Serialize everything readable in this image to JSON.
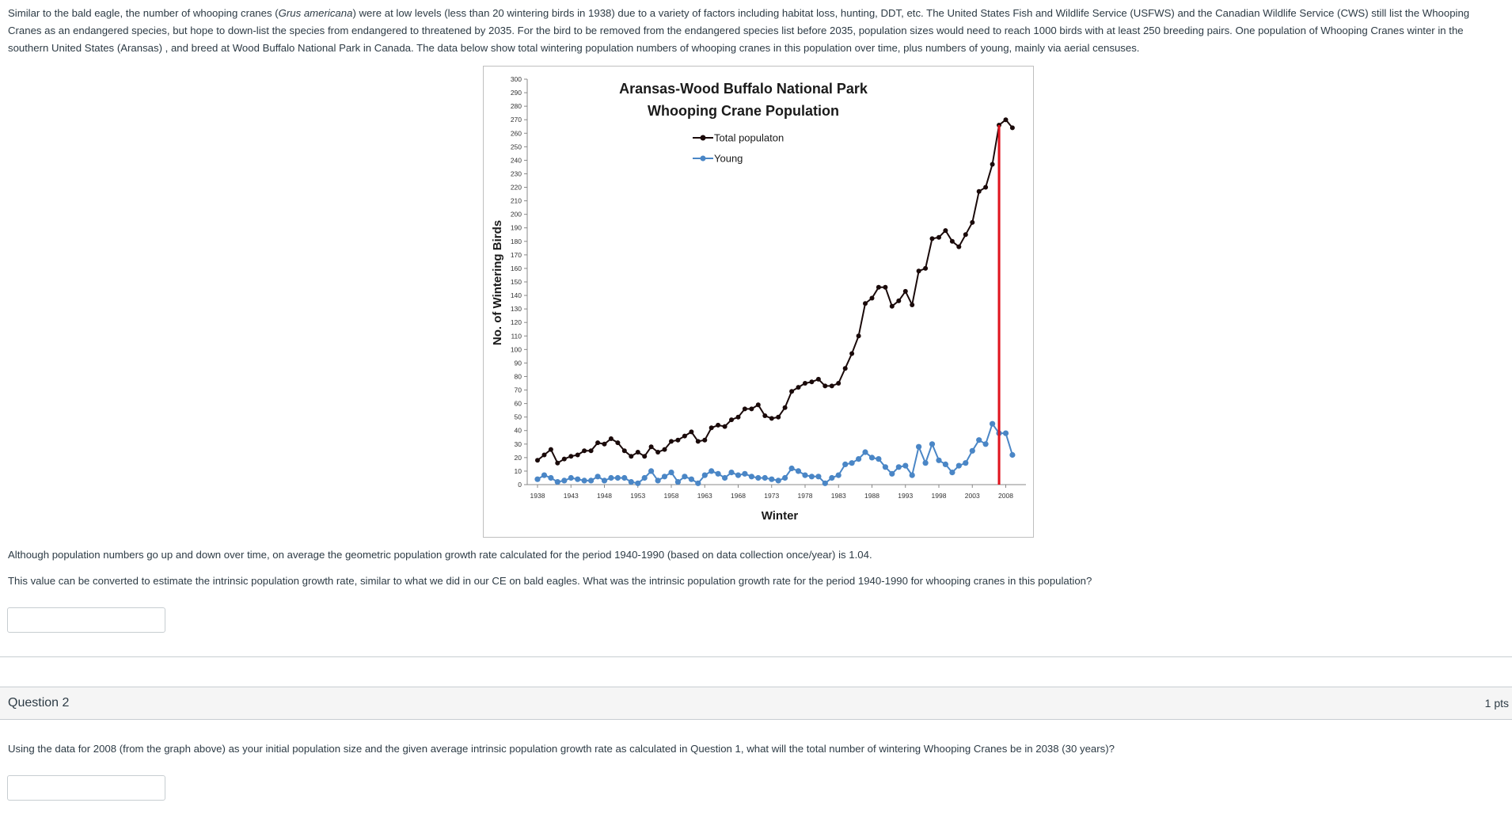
{
  "intro": {
    "text_before_italic": "Similar to the bald eagle, the number of whooping cranes (",
    "italic_species": "Grus americana",
    "text_after_italic": ") were at low levels (less than 20 wintering birds in 1938) due to a variety of factors including habitat loss, hunting, DDT, etc. The United States Fish and Wildlife Service (USFWS) and the Canadian Wildlife Service (CWS) still list the Whooping Cranes as an endangered species, but hope to down-list the species from endangered to threatened by 2035. For the bird to be removed from the endangered species list before 2035, population sizes would need to reach 1000 birds with at least 250 breeding pairs. One population of Whooping Cranes winter in the southern United States (Aransas) , and breed at Wood Buffalo National Park in Canada. The data below show total wintering population numbers of whooping cranes in this population over time, plus numbers of young, mainly via aerial censuses."
  },
  "question1": {
    "paragraph1": "Although population numbers go up and down over time, on average the geometric population growth rate calculated for the period 1940-1990 (based on data collection once/year) is 1.04.",
    "paragraph2": "This value can be converted to estimate the intrinsic population growth rate, similar to what we did in our CE on bald eagles. What was the intrinsic population growth rate for the period 1940-1990 for whooping cranes in this population?",
    "answer_value": ""
  },
  "question2": {
    "title": "Question 2",
    "points": "1 pts",
    "text": "Using the data for 2008 (from the graph above) as your initial population size and the given average intrinsic population growth rate as calculated in Question 1, what will the total number of wintering Whooping Cranes be in 2038 (30 years)?",
    "answer_value": ""
  },
  "chart_data": {
    "type": "line",
    "title_line1": "Aransas-Wood Buffalo National Park",
    "title_line2": "Whooping Crane Population",
    "xlabel": "Winter",
    "ylabel": "No. of Wintering Birds",
    "ylim": [
      0,
      300
    ],
    "yticks": [
      0,
      10,
      20,
      30,
      40,
      50,
      60,
      70,
      80,
      90,
      100,
      110,
      120,
      130,
      140,
      150,
      160,
      170,
      180,
      190,
      200,
      210,
      220,
      230,
      240,
      250,
      260,
      270,
      280,
      290,
      300
    ],
    "xticks": [
      "1938",
      "1943",
      "1948",
      "1953",
      "1958",
      "1963",
      "1968",
      "1973",
      "1978",
      "1983",
      "1988",
      "1993",
      "1998",
      "2003",
      "2008"
    ],
    "xlim": [
      1938,
      2009
    ],
    "legend_position": "top-center",
    "grid": false,
    "marker_line": {
      "x": 2007,
      "color": "#e0141e"
    },
    "years": [
      1938,
      1939,
      1940,
      1941,
      1942,
      1943,
      1944,
      1945,
      1946,
      1947,
      1948,
      1949,
      1950,
      1951,
      1952,
      1953,
      1954,
      1955,
      1956,
      1957,
      1958,
      1959,
      1960,
      1961,
      1962,
      1963,
      1964,
      1965,
      1966,
      1967,
      1968,
      1969,
      1970,
      1971,
      1972,
      1973,
      1974,
      1975,
      1976,
      1977,
      1978,
      1979,
      1980,
      1981,
      1982,
      1983,
      1984,
      1985,
      1986,
      1987,
      1988,
      1989,
      1990,
      1991,
      1992,
      1993,
      1994,
      1995,
      1996,
      1997,
      1998,
      1999,
      2000,
      2001,
      2002,
      2003,
      2004,
      2005,
      2006,
      2007,
      2008,
      2009
    ],
    "series": [
      {
        "name": "Total populaton",
        "color": "#1a0a0a",
        "values": [
          18,
          22,
          26,
          16,
          19,
          21,
          22,
          25,
          25,
          31,
          30,
          34,
          31,
          25,
          21,
          24,
          21,
          28,
          24,
          26,
          32,
          33,
          36,
          39,
          32,
          33,
          42,
          44,
          43,
          48,
          50,
          56,
          56,
          59,
          51,
          49,
          50,
          57,
          69,
          72,
          75,
          76,
          78,
          73,
          73,
          75,
          86,
          97,
          110,
          134,
          138,
          146,
          146,
          132,
          136,
          143,
          133,
          158,
          160,
          182,
          183,
          188,
          180,
          176,
          185,
          194,
          217,
          220,
          237,
          266,
          270,
          264
        ],
        "values_note": ""
      },
      {
        "name": "Young",
        "color": "#4a86c6",
        "values": [
          4,
          7,
          5,
          2,
          3,
          5,
          4,
          3,
          3,
          6,
          3,
          5,
          5,
          5,
          2,
          1,
          5,
          10,
          3,
          6,
          9,
          2,
          6,
          4,
          1,
          7,
          10,
          8,
          5,
          9,
          7,
          8,
          6,
          5,
          5,
          4,
          3,
          5,
          12,
          10,
          7,
          6,
          6,
          1,
          5,
          7,
          15,
          16,
          19,
          24,
          20,
          19,
          13,
          8,
          13,
          14,
          7,
          28,
          16,
          30,
          18,
          15,
          9,
          14,
          16,
          25,
          33,
          30,
          45,
          38,
          38,
          22
        ],
        "values_note": ""
      }
    ]
  }
}
